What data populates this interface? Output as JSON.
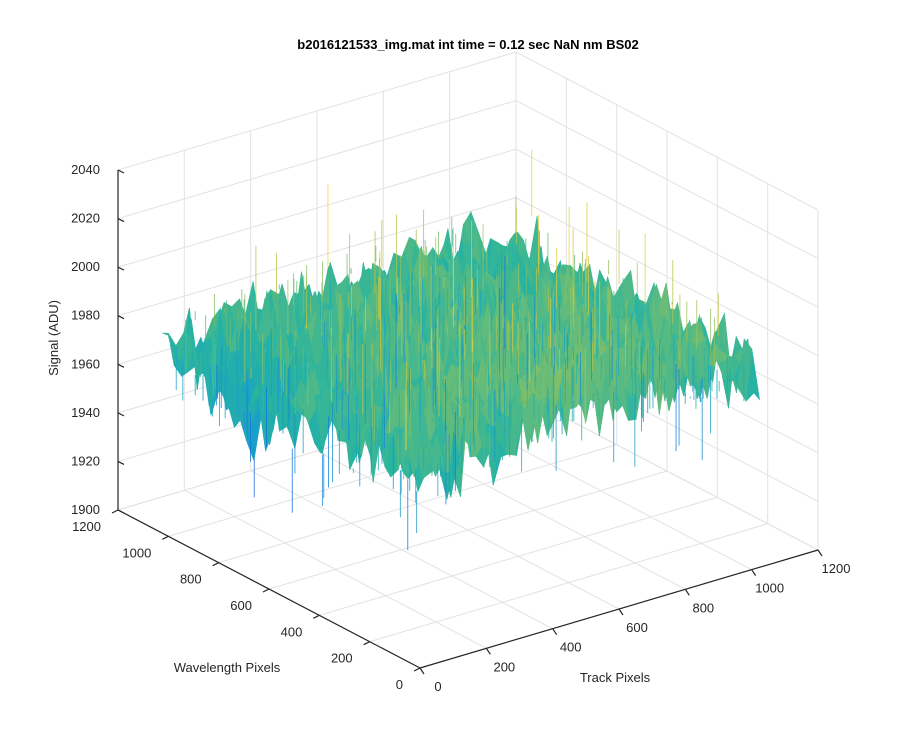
{
  "chart_data": {
    "type": "surface",
    "title": "b2016121533_img.mat int time = 0.12 sec  NaN nm BS02",
    "xlabel": "Track Pixels",
    "ylabel": "Wavelength Pixels",
    "zlabel": "Signal (ADU)",
    "xlim": [
      0,
      1200
    ],
    "ylim": [
      0,
      1200
    ],
    "zlim": [
      1900,
      2040
    ],
    "x_ticks": [
      "0",
      "200",
      "400",
      "600",
      "800",
      "1000",
      "1200"
    ],
    "y_ticks": [
      "0",
      "200",
      "400",
      "600",
      "800",
      "1000",
      "1200"
    ],
    "z_ticks": [
      "1900",
      "1920",
      "1940",
      "1960",
      "1980",
      "2000",
      "2020",
      "2040"
    ],
    "x_range_data": [
      0,
      1024
    ],
    "y_range_data": [
      0,
      1024
    ],
    "signal_mean": 1978,
    "signal_range": [
      1905,
      2035
    ],
    "grid": true,
    "colormap": "parula",
    "colors": {
      "low": "#1f3ad6",
      "mid": "#1fb0b0",
      "high": "#f2d43a"
    }
  }
}
